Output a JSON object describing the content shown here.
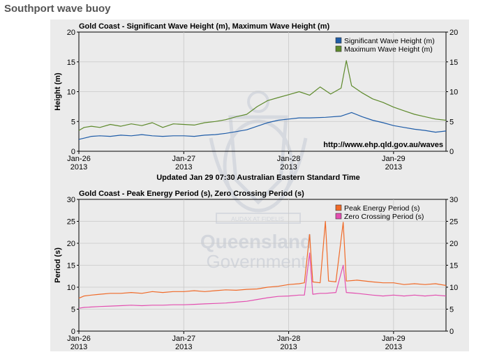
{
  "page": {
    "title": "Southport wave buoy"
  },
  "update_note": "Updated Jan 29 07:30 Australian Eastern Standard Time",
  "watermark": {
    "line1": "Queensland",
    "line2": "Government",
    "motto": "AUDAX AT FIDELIS"
  },
  "colors": {
    "significant": "#1e5ca8",
    "maximum": "#5e8a2c",
    "peak": "#f06a28",
    "zero": "#e34fb0",
    "grid": "#c8c8c8",
    "panel": "#ebebeb"
  },
  "chart_data": [
    {
      "type": "line",
      "title": "Gold Coast - Significant Wave Height (m), Maximum Wave Height (m)",
      "xlabel": "",
      "ylabel": "Height (m)",
      "ylim": [
        0,
        20
      ],
      "yticks": [
        "0",
        "5",
        "10",
        "15",
        "20"
      ],
      "xlim": [
        0,
        3.5
      ],
      "xticks": [
        {
          "x": 0,
          "label": "Jan-26",
          "year": "2013"
        },
        {
          "x": 1,
          "label": "Jan-27",
          "year": "2013"
        },
        {
          "x": 2,
          "label": "Jan-28",
          "year": "2013"
        },
        {
          "x": 3,
          "label": "Jan-29",
          "year": "2013"
        }
      ],
      "annotation": "http://www.ehp.qld.gov.au/waves",
      "legend": "top-right",
      "series": [
        {
          "name": "Significant Wave Height (m)",
          "color": "#1e5ca8",
          "points": [
            [
              0,
              2.0
            ],
            [
              0.05,
              2.2
            ],
            [
              0.12,
              2.5
            ],
            [
              0.2,
              2.6
            ],
            [
              0.3,
              2.5
            ],
            [
              0.4,
              2.7
            ],
            [
              0.5,
              2.6
            ],
            [
              0.6,
              2.8
            ],
            [
              0.7,
              2.6
            ],
            [
              0.8,
              2.5
            ],
            [
              0.9,
              2.6
            ],
            [
              1.0,
              2.6
            ],
            [
              1.1,
              2.5
            ],
            [
              1.2,
              2.7
            ],
            [
              1.3,
              2.8
            ],
            [
              1.4,
              3.0
            ],
            [
              1.5,
              3.3
            ],
            [
              1.6,
              3.6
            ],
            [
              1.7,
              4.2
            ],
            [
              1.8,
              4.8
            ],
            [
              1.9,
              5.2
            ],
            [
              2.0,
              5.4
            ],
            [
              2.1,
              5.6
            ],
            [
              2.2,
              5.6
            ],
            [
              2.35,
              5.7
            ],
            [
              2.5,
              5.9
            ],
            [
              2.6,
              6.5
            ],
            [
              2.7,
              5.8
            ],
            [
              2.8,
              5.2
            ],
            [
              2.9,
              4.8
            ],
            [
              3.0,
              4.3
            ],
            [
              3.1,
              4.0
            ],
            [
              3.2,
              3.7
            ],
            [
              3.3,
              3.5
            ],
            [
              3.4,
              3.2
            ],
            [
              3.5,
              3.4
            ]
          ]
        },
        {
          "name": "Maximum Wave Height (m)",
          "color": "#5e8a2c",
          "points": [
            [
              0,
              3.5
            ],
            [
              0.05,
              4.0
            ],
            [
              0.12,
              4.2
            ],
            [
              0.2,
              4.0
            ],
            [
              0.3,
              4.5
            ],
            [
              0.4,
              4.2
            ],
            [
              0.5,
              4.6
            ],
            [
              0.6,
              4.3
            ],
            [
              0.7,
              4.8
            ],
            [
              0.8,
              4.0
            ],
            [
              0.9,
              4.6
            ],
            [
              1.0,
              4.5
            ],
            [
              1.1,
              4.4
            ],
            [
              1.2,
              4.8
            ],
            [
              1.3,
              5.0
            ],
            [
              1.4,
              5.3
            ],
            [
              1.5,
              5.8
            ],
            [
              1.6,
              6.2
            ],
            [
              1.7,
              7.5
            ],
            [
              1.8,
              8.5
            ],
            [
              1.9,
              9.0
            ],
            [
              2.0,
              9.5
            ],
            [
              2.1,
              10.0
            ],
            [
              2.2,
              9.4
            ],
            [
              2.3,
              10.8
            ],
            [
              2.4,
              9.6
            ],
            [
              2.5,
              10.6
            ],
            [
              2.55,
              15.2
            ],
            [
              2.6,
              11.0
            ],
            [
              2.7,
              9.8
            ],
            [
              2.8,
              8.8
            ],
            [
              2.9,
              8.2
            ],
            [
              3.0,
              7.4
            ],
            [
              3.1,
              6.8
            ],
            [
              3.2,
              6.2
            ],
            [
              3.3,
              5.8
            ],
            [
              3.4,
              5.4
            ],
            [
              3.5,
              5.2
            ]
          ]
        }
      ]
    },
    {
      "type": "line",
      "title": "Gold Coast - Peak Energy Period (s), Zero Crossing Period (s)",
      "xlabel": "",
      "ylabel": "Period (s)",
      "ylim": [
        0,
        30
      ],
      "yticks": [
        "0",
        "5",
        "10",
        "15",
        "20",
        "25",
        "30"
      ],
      "xlim": [
        0,
        3.5
      ],
      "xticks": [
        {
          "x": 0,
          "label": "Jan-26",
          "year": "2013"
        },
        {
          "x": 1,
          "label": "Jan-27",
          "year": "2013"
        },
        {
          "x": 2,
          "label": "Jan-28",
          "year": "2013"
        },
        {
          "x": 3,
          "label": "Jan-29",
          "year": "2013"
        }
      ],
      "legend": "top-right",
      "series": [
        {
          "name": "Peak Energy Period (s)",
          "color": "#f06a28",
          "points": [
            [
              0,
              7.5
            ],
            [
              0.05,
              8.0
            ],
            [
              0.12,
              8.2
            ],
            [
              0.2,
              8.4
            ],
            [
              0.3,
              8.6
            ],
            [
              0.4,
              8.6
            ],
            [
              0.5,
              8.8
            ],
            [
              0.6,
              8.6
            ],
            [
              0.7,
              9.0
            ],
            [
              0.8,
              8.8
            ],
            [
              0.9,
              9.0
            ],
            [
              1.0,
              9.0
            ],
            [
              1.1,
              9.2
            ],
            [
              1.2,
              9.0
            ],
            [
              1.3,
              9.2
            ],
            [
              1.4,
              9.4
            ],
            [
              1.5,
              9.3
            ],
            [
              1.6,
              9.5
            ],
            [
              1.7,
              9.6
            ],
            [
              1.8,
              10.0
            ],
            [
              1.9,
              10.2
            ],
            [
              2.0,
              10.6
            ],
            [
              2.1,
              10.8
            ],
            [
              2.15,
              11.0
            ],
            [
              2.2,
              22.0
            ],
            [
              2.23,
              11.2
            ],
            [
              2.3,
              11.0
            ],
            [
              2.35,
              25.0
            ],
            [
              2.38,
              11.4
            ],
            [
              2.45,
              11.2
            ],
            [
              2.52,
              24.8
            ],
            [
              2.55,
              11.4
            ],
            [
              2.65,
              11.6
            ],
            [
              2.8,
              11.2
            ],
            [
              2.9,
              11.0
            ],
            [
              3.0,
              11.0
            ],
            [
              3.1,
              10.6
            ],
            [
              3.2,
              10.8
            ],
            [
              3.3,
              10.6
            ],
            [
              3.4,
              10.8
            ],
            [
              3.5,
              10.4
            ]
          ]
        },
        {
          "name": "Zero Crossing Period (s)",
          "color": "#e34fb0",
          "points": [
            [
              0,
              5.2
            ],
            [
              0.05,
              5.4
            ],
            [
              0.12,
              5.5
            ],
            [
              0.2,
              5.6
            ],
            [
              0.3,
              5.7
            ],
            [
              0.4,
              5.8
            ],
            [
              0.5,
              5.9
            ],
            [
              0.6,
              5.8
            ],
            [
              0.7,
              5.9
            ],
            [
              0.8,
              5.9
            ],
            [
              0.9,
              6.0
            ],
            [
              1.0,
              6.0
            ],
            [
              1.1,
              6.1
            ],
            [
              1.2,
              6.2
            ],
            [
              1.3,
              6.3
            ],
            [
              1.4,
              6.4
            ],
            [
              1.5,
              6.6
            ],
            [
              1.6,
              6.8
            ],
            [
              1.7,
              7.2
            ],
            [
              1.8,
              7.6
            ],
            [
              1.9,
              7.9
            ],
            [
              2.0,
              8.0
            ],
            [
              2.1,
              8.2
            ],
            [
              2.15,
              8.2
            ],
            [
              2.2,
              17.8
            ],
            [
              2.23,
              8.4
            ],
            [
              2.3,
              8.6
            ],
            [
              2.35,
              8.6
            ],
            [
              2.45,
              8.8
            ],
            [
              2.52,
              15.0
            ],
            [
              2.55,
              8.8
            ],
            [
              2.65,
              8.6
            ],
            [
              2.8,
              8.2
            ],
            [
              2.9,
              8.0
            ],
            [
              3.0,
              8.2
            ],
            [
              3.1,
              8.0
            ],
            [
              3.2,
              8.2
            ],
            [
              3.3,
              8.0
            ],
            [
              3.4,
              8.2
            ],
            [
              3.5,
              8.0
            ]
          ]
        }
      ]
    }
  ]
}
